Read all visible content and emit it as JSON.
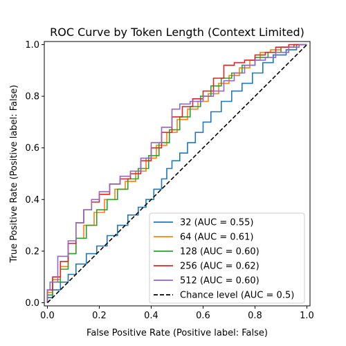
{
  "chart_data": {
    "type": "line",
    "title": "ROC Curve by Token Length (Context Limited)",
    "xlabel": "False Positive Rate (Positive label: False)",
    "ylabel": "True Positive Rate (Positive label: False)",
    "xlim": [
      0,
      1
    ],
    "ylim": [
      0,
      1
    ],
    "x_ticks": [
      "0.0",
      "0.2",
      "0.4",
      "0.6",
      "0.8",
      "1.0"
    ],
    "y_ticks": [
      "0.0",
      "0.2",
      "0.4",
      "0.6",
      "0.8",
      "1.0"
    ],
    "grid": false,
    "legend_position": "lower-right",
    "series": [
      {
        "name": "32 (AUC = 0.55)",
        "color": "#1f77b4",
        "dash": "solid",
        "points": [
          [
            0,
            0
          ],
          [
            0.02,
            0.02
          ],
          [
            0.05,
            0.05
          ],
          [
            0.08,
            0.08
          ],
          [
            0.11,
            0.11
          ],
          [
            0.15,
            0.15
          ],
          [
            0.19,
            0.19
          ],
          [
            0.23,
            0.22
          ],
          [
            0.27,
            0.26
          ],
          [
            0.31,
            0.3
          ],
          [
            0.35,
            0.34
          ],
          [
            0.38,
            0.37
          ],
          [
            0.41,
            0.4
          ],
          [
            0.44,
            0.44
          ],
          [
            0.46,
            0.48
          ],
          [
            0.48,
            0.52
          ],
          [
            0.51,
            0.55
          ],
          [
            0.54,
            0.58
          ],
          [
            0.57,
            0.62
          ],
          [
            0.6,
            0.66
          ],
          [
            0.63,
            0.7
          ],
          [
            0.67,
            0.74
          ],
          [
            0.71,
            0.78
          ],
          [
            0.75,
            0.82
          ],
          [
            0.79,
            0.85
          ],
          [
            0.83,
            0.89
          ],
          [
            0.87,
            0.93
          ],
          [
            0.92,
            0.96
          ],
          [
            0.96,
            0.98
          ],
          [
            1.0,
            1.0
          ]
        ]
      },
      {
        "name": "64 (AUC = 0.61)",
        "color": "#ff7f0e",
        "dash": "solid",
        "points": [
          [
            0,
            0
          ],
          [
            0.02,
            0.04
          ],
          [
            0.05,
            0.09
          ],
          [
            0.08,
            0.14
          ],
          [
            0.11,
            0.19
          ],
          [
            0.14,
            0.25
          ],
          [
            0.18,
            0.3
          ],
          [
            0.22,
            0.35
          ],
          [
            0.26,
            0.4
          ],
          [
            0.3,
            0.44
          ],
          [
            0.34,
            0.47
          ],
          [
            0.38,
            0.51
          ],
          [
            0.42,
            0.56
          ],
          [
            0.46,
            0.61
          ],
          [
            0.5,
            0.66
          ],
          [
            0.54,
            0.71
          ],
          [
            0.58,
            0.75
          ],
          [
            0.62,
            0.78
          ],
          [
            0.66,
            0.81
          ],
          [
            0.7,
            0.85
          ],
          [
            0.74,
            0.88
          ],
          [
            0.78,
            0.91
          ],
          [
            0.82,
            0.94
          ],
          [
            0.86,
            0.97
          ],
          [
            0.9,
            0.98
          ],
          [
            0.95,
            0.99
          ],
          [
            1.0,
            1.0
          ]
        ]
      },
      {
        "name": "128 (AUC = 0.60)",
        "color": "#2ca02c",
        "dash": "solid",
        "points": [
          [
            0,
            0
          ],
          [
            0.02,
            0.03
          ],
          [
            0.05,
            0.08
          ],
          [
            0.08,
            0.13
          ],
          [
            0.11,
            0.19
          ],
          [
            0.15,
            0.25
          ],
          [
            0.19,
            0.3
          ],
          [
            0.23,
            0.36
          ],
          [
            0.27,
            0.4
          ],
          [
            0.31,
            0.44
          ],
          [
            0.35,
            0.48
          ],
          [
            0.39,
            0.52
          ],
          [
            0.43,
            0.57
          ],
          [
            0.47,
            0.62
          ],
          [
            0.51,
            0.67
          ],
          [
            0.55,
            0.72
          ],
          [
            0.59,
            0.76
          ],
          [
            0.63,
            0.8
          ],
          [
            0.67,
            0.84
          ],
          [
            0.71,
            0.87
          ],
          [
            0.75,
            0.89
          ],
          [
            0.8,
            0.92
          ],
          [
            0.85,
            0.95
          ],
          [
            0.9,
            0.97
          ],
          [
            0.95,
            0.99
          ],
          [
            1.0,
            1.0
          ]
        ]
      },
      {
        "name": "256 (AUC = 0.62)",
        "color": "#d62728",
        "dash": "solid",
        "points": [
          [
            0,
            0
          ],
          [
            0.02,
            0.05
          ],
          [
            0.05,
            0.1
          ],
          [
            0.08,
            0.16
          ],
          [
            0.11,
            0.23
          ],
          [
            0.14,
            0.31
          ],
          [
            0.17,
            0.36
          ],
          [
            0.2,
            0.39
          ],
          [
            0.24,
            0.42
          ],
          [
            0.28,
            0.46
          ],
          [
            0.32,
            0.48
          ],
          [
            0.36,
            0.5
          ],
          [
            0.4,
            0.55
          ],
          [
            0.44,
            0.6
          ],
          [
            0.48,
            0.66
          ],
          [
            0.52,
            0.72
          ],
          [
            0.56,
            0.76
          ],
          [
            0.6,
            0.79
          ],
          [
            0.64,
            0.82
          ],
          [
            0.68,
            0.87
          ],
          [
            0.72,
            0.92
          ],
          [
            0.76,
            0.93
          ],
          [
            0.8,
            0.94
          ],
          [
            0.84,
            0.96
          ],
          [
            0.88,
            0.97
          ],
          [
            0.93,
            0.99
          ],
          [
            1.0,
            1.0
          ]
        ]
      },
      {
        "name": "512 (AUC = 0.60)",
        "color": "#9467bd",
        "dash": "solid",
        "points": [
          [
            0,
            0
          ],
          [
            0.01,
            0.05
          ],
          [
            0.04,
            0.08
          ],
          [
            0.08,
            0.18
          ],
          [
            0.11,
            0.24
          ],
          [
            0.14,
            0.31
          ],
          [
            0.17,
            0.36
          ],
          [
            0.2,
            0.4
          ],
          [
            0.24,
            0.43
          ],
          [
            0.28,
            0.46
          ],
          [
            0.32,
            0.49
          ],
          [
            0.36,
            0.51
          ],
          [
            0.4,
            0.56
          ],
          [
            0.44,
            0.62
          ],
          [
            0.48,
            0.68
          ],
          [
            0.51,
            0.75
          ],
          [
            0.55,
            0.77
          ],
          [
            0.6,
            0.78
          ],
          [
            0.64,
            0.8
          ],
          [
            0.68,
            0.82
          ],
          [
            0.72,
            0.86
          ],
          [
            0.76,
            0.89
          ],
          [
            0.8,
            0.92
          ],
          [
            0.84,
            0.94
          ],
          [
            0.88,
            0.95
          ],
          [
            0.93,
            0.97
          ],
          [
            0.97,
            0.99
          ],
          [
            1.0,
            1.0
          ]
        ]
      },
      {
        "name": "Chance level (AUC = 0.5)",
        "color": "#000000",
        "dash": "dashed",
        "points": [
          [
            0,
            0
          ],
          [
            1,
            1
          ]
        ]
      }
    ]
  }
}
